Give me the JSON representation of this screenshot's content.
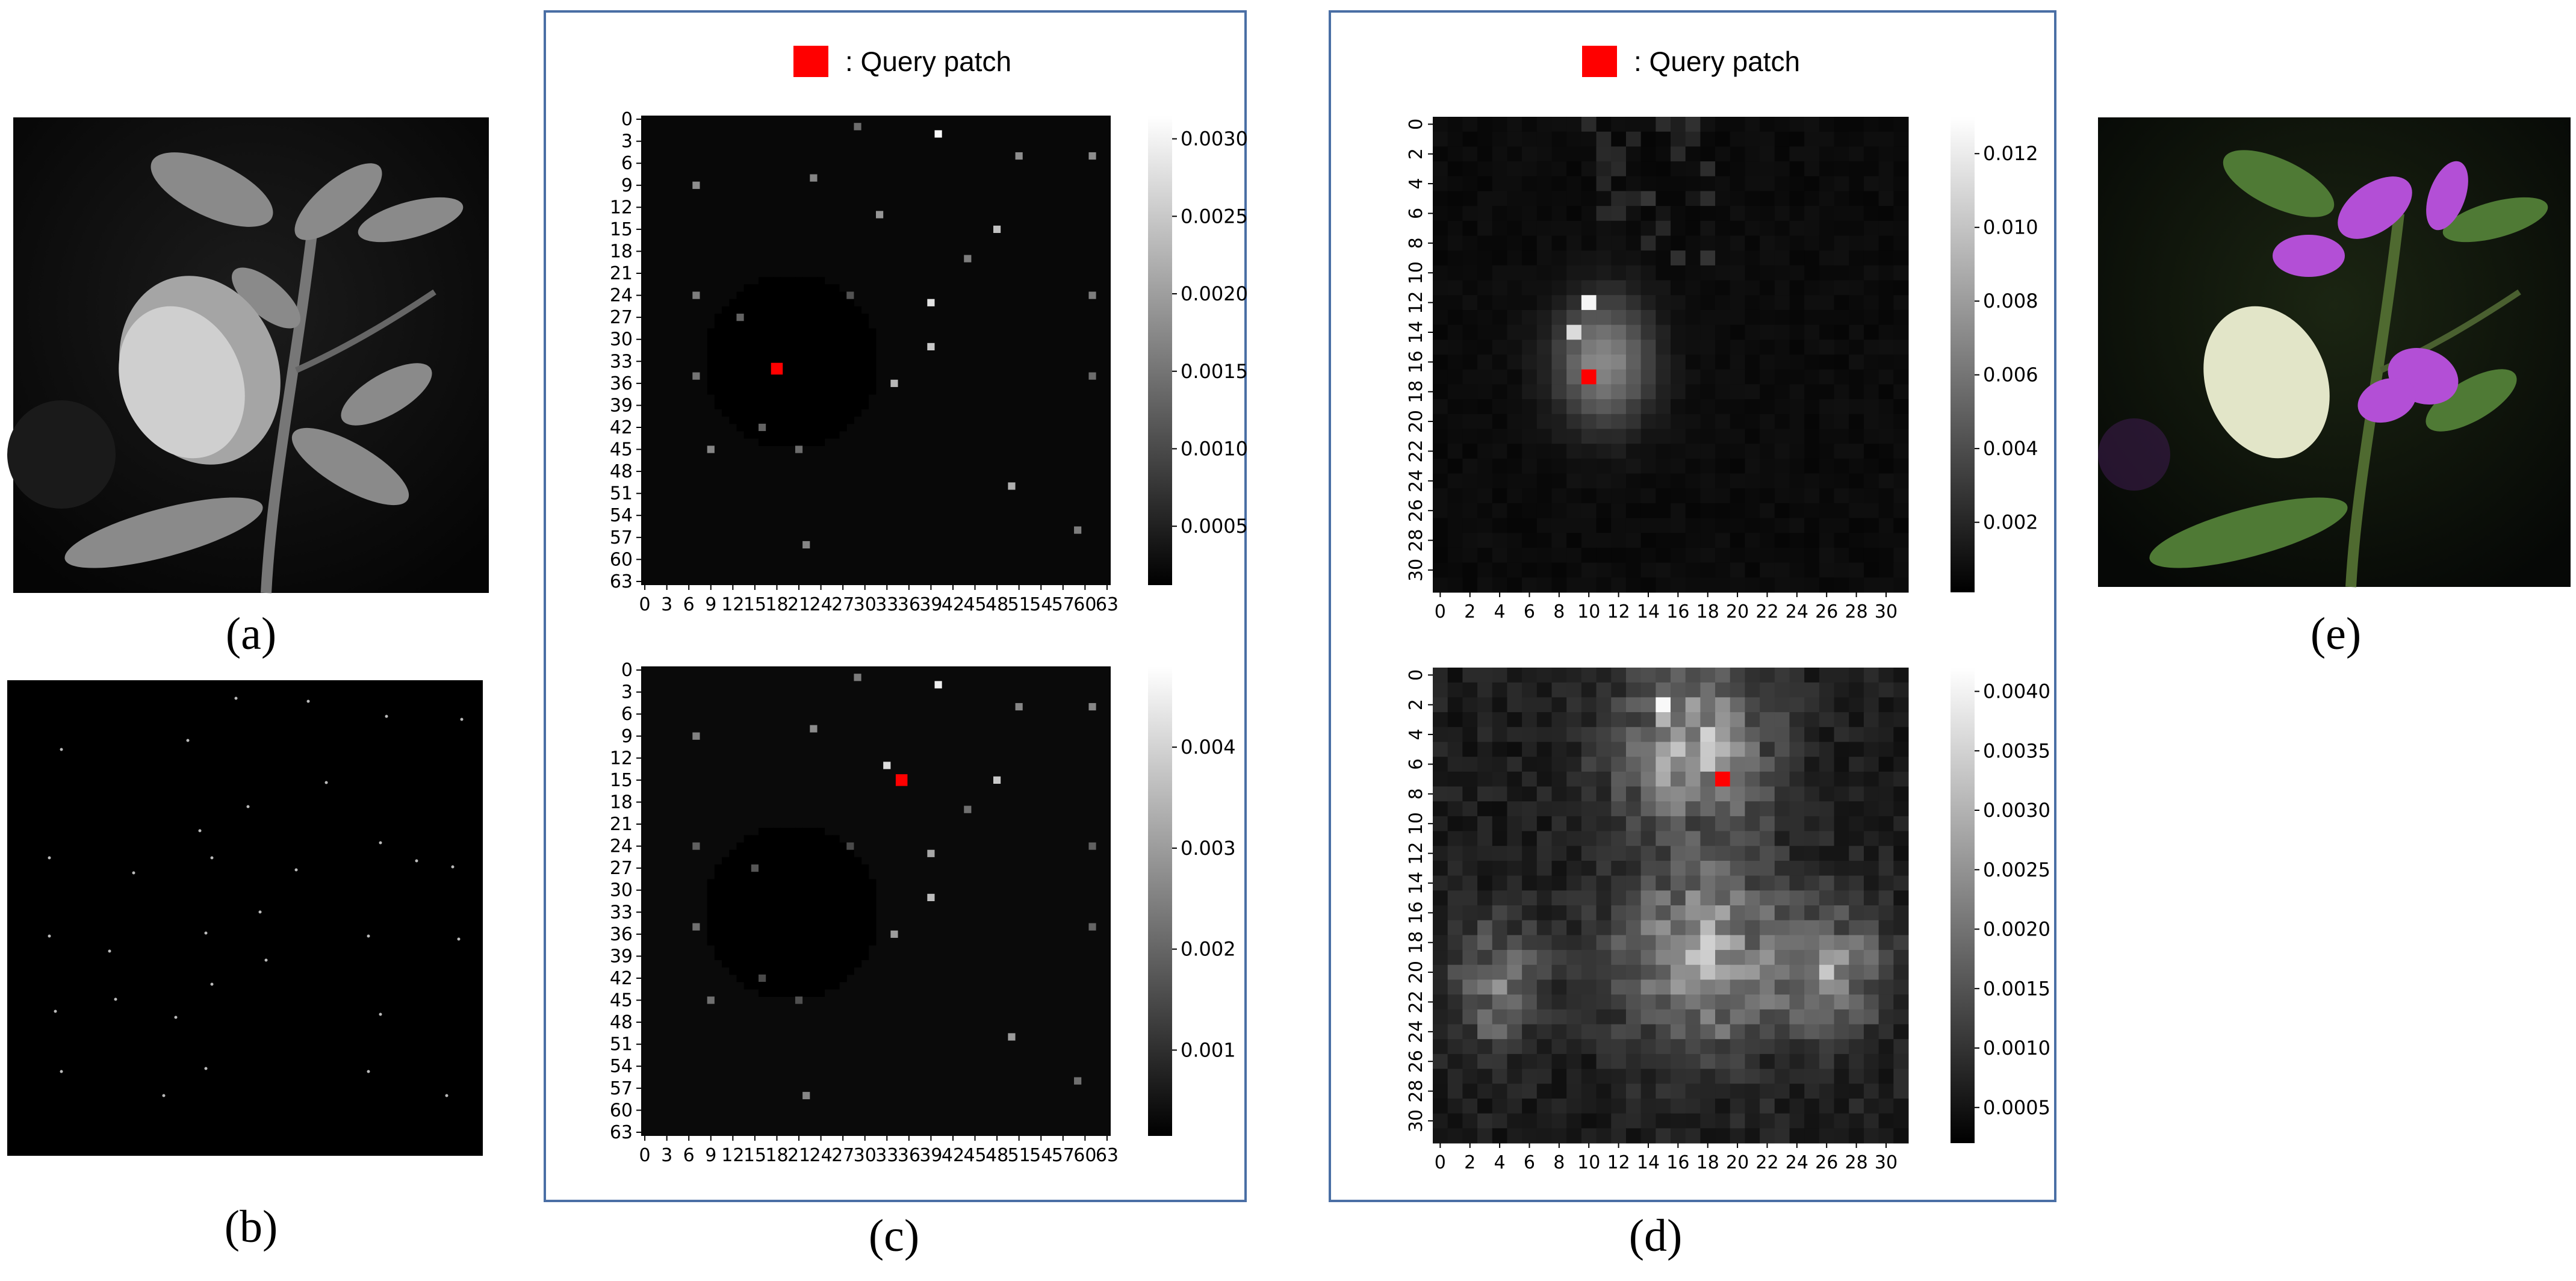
{
  "captions": {
    "a": "(a)",
    "b": "(b)",
    "c": "(c)",
    "d": "(d)",
    "e": "(e)"
  },
  "legend_text": ": Query patch",
  "colors": {
    "query": "#ff0000",
    "frame": "#4a6fa5"
  },
  "chart_data": [
    {
      "id": "c-top",
      "type": "heatmap",
      "grid": 64,
      "ticks": [
        "0",
        "3",
        "6",
        "9",
        "12",
        "15",
        "18",
        "21",
        "24",
        "27",
        "30",
        "33",
        "36",
        "39",
        "42",
        "45",
        "48",
        "51",
        "54",
        "57",
        "60",
        "63"
      ],
      "colorbar": {
        "min": 0.00012,
        "max": 0.00315,
        "ticks": [
          0.0005,
          0.001,
          0.0015,
          0.002,
          0.0025,
          0.003
        ],
        "tick_labels": [
          "0.0005",
          "0.0010",
          "0.0015",
          "0.0020",
          "0.0025",
          "0.0030"
        ]
      },
      "query": [
        18,
        34
      ],
      "points": [
        [
          29,
          1,
          0.0014
        ],
        [
          40,
          2,
          0.0031
        ],
        [
          51,
          5,
          0.0018
        ],
        [
          61,
          5,
          0.0018
        ],
        [
          7,
          9,
          0.0018
        ],
        [
          23,
          8,
          0.0017
        ],
        [
          32,
          13,
          0.0019
        ],
        [
          48,
          15,
          0.0024
        ],
        [
          44,
          19,
          0.0016
        ],
        [
          39,
          25,
          0.0028
        ],
        [
          7,
          24,
          0.0016
        ],
        [
          61,
          24,
          0.0016
        ],
        [
          13,
          27,
          0.0013
        ],
        [
          28,
          24,
          0.0011
        ],
        [
          39,
          31,
          0.0025
        ],
        [
          7,
          35,
          0.0015
        ],
        [
          34,
          36,
          0.0023
        ],
        [
          61,
          35,
          0.0014
        ],
        [
          16,
          42,
          0.0013
        ],
        [
          9,
          45,
          0.0017
        ],
        [
          21,
          45,
          0.0014
        ],
        [
          50,
          50,
          0.0022
        ],
        [
          59,
          56,
          0.0016
        ],
        [
          22,
          58,
          0.0017
        ]
      ]
    },
    {
      "id": "c-bottom",
      "type": "heatmap",
      "grid": 64,
      "ticks": [
        "0",
        "3",
        "6",
        "9",
        "12",
        "15",
        "18",
        "21",
        "24",
        "27",
        "30",
        "33",
        "36",
        "39",
        "42",
        "45",
        "48",
        "51",
        "54",
        "57",
        "60",
        "63"
      ],
      "colorbar": {
        "min": 0.00015,
        "max": 0.0048,
        "ticks": [
          0.001,
          0.002,
          0.003,
          0.004
        ],
        "tick_labels": [
          "0.001",
          "0.002",
          "0.003",
          "0.004"
        ]
      },
      "query": [
        35,
        15
      ],
      "points": [
        [
          29,
          1,
          0.0024
        ],
        [
          40,
          2,
          0.0045
        ],
        [
          51,
          5,
          0.0026
        ],
        [
          61,
          5,
          0.0026
        ],
        [
          7,
          9,
          0.0025
        ],
        [
          23,
          8,
          0.0027
        ],
        [
          33,
          13,
          0.0042
        ],
        [
          48,
          15,
          0.0038
        ],
        [
          44,
          19,
          0.0022
        ],
        [
          39,
          25,
          0.0032
        ],
        [
          7,
          24,
          0.0019
        ],
        [
          61,
          24,
          0.0019
        ],
        [
          15,
          27,
          0.0017
        ],
        [
          28,
          24,
          0.0015
        ],
        [
          39,
          31,
          0.0036
        ],
        [
          7,
          35,
          0.0022
        ],
        [
          34,
          36,
          0.003
        ],
        [
          61,
          35,
          0.002
        ],
        [
          16,
          42,
          0.0015
        ],
        [
          9,
          45,
          0.0022
        ],
        [
          21,
          45,
          0.0016
        ],
        [
          50,
          50,
          0.003
        ],
        [
          59,
          56,
          0.0022
        ],
        [
          22,
          58,
          0.0026
        ]
      ]
    },
    {
      "id": "d-top",
      "type": "heatmap",
      "grid": 32,
      "ticks": [
        "0",
        "2",
        "4",
        "6",
        "8",
        "10",
        "12",
        "14",
        "16",
        "18",
        "20",
        "22",
        "24",
        "26",
        "28",
        "30"
      ],
      "colorbar": {
        "min": 0.0001,
        "max": 0.013,
        "ticks": [
          0.002,
          0.004,
          0.006,
          0.008,
          0.01,
          0.012
        ],
        "tick_labels": [
          "0.002",
          "0.004",
          "0.006",
          "0.008",
          "0.010",
          "0.012"
        ]
      },
      "query": [
        10,
        17
      ]
    },
    {
      "id": "d-bottom",
      "type": "heatmap",
      "grid": 32,
      "ticks": [
        "0",
        "2",
        "4",
        "6",
        "8",
        "10",
        "12",
        "14",
        "16",
        "18",
        "20",
        "22",
        "24",
        "26",
        "28",
        "30"
      ],
      "colorbar": {
        "min": 0.0002,
        "max": 0.0042,
        "ticks": [
          0.0005,
          0.001,
          0.0015,
          0.002,
          0.0025,
          0.003,
          0.0035,
          0.004
        ],
        "tick_labels": [
          "0.0005",
          "0.0010",
          "0.0015",
          "0.0020",
          "0.0025",
          "0.0030",
          "0.0035",
          "0.0040"
        ]
      },
      "query": [
        19,
        7
      ]
    }
  ]
}
